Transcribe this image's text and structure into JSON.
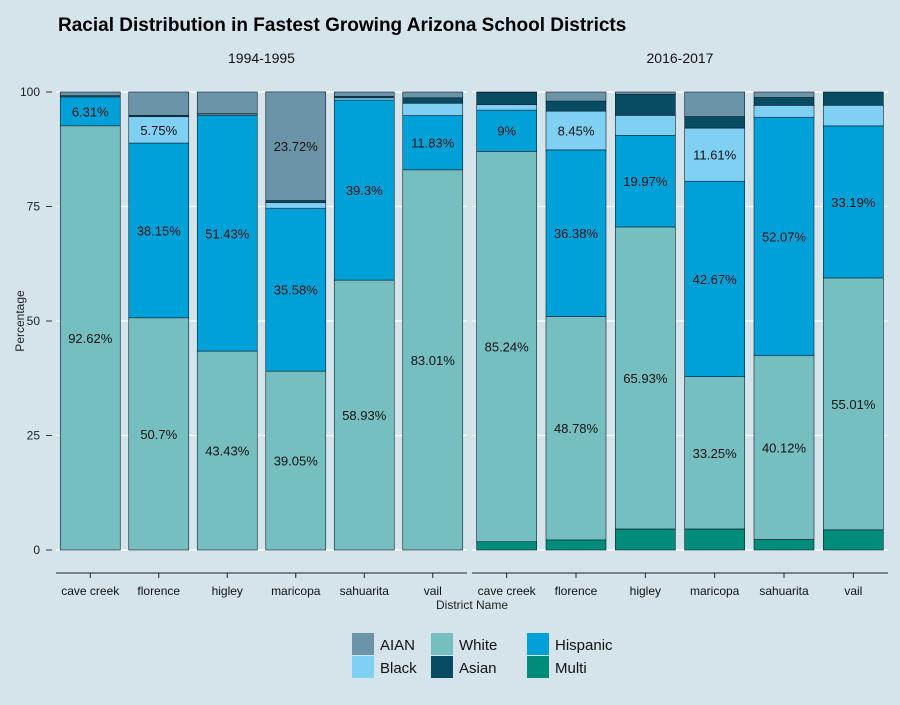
{
  "chart_data": {
    "type": "bar",
    "stacked": true,
    "title": "Racial Distribution in Fastest Growing Arizona School Districts",
    "xlabel": "District Name",
    "ylabel": "Percentage",
    "ylim": [
      0,
      100
    ],
    "yticks": [
      "0",
      "25",
      "50",
      "75",
      "100"
    ],
    "grid": true,
    "legend_position": "bottom",
    "categories": [
      "cave creek",
      "florence",
      "higley",
      "maricopa",
      "sahuarita",
      "vail"
    ],
    "stack_order": [
      "Multi",
      "White",
      "Hispanic",
      "Black",
      "Asian",
      "AIAN"
    ],
    "legend": [
      {
        "name": "AIAN",
        "color": "#6b94a8"
      },
      {
        "name": "Black",
        "color": "#7fd0f2"
      },
      {
        "name": "White",
        "color": "#76bfc0"
      },
      {
        "name": "Asian",
        "color": "#074c63"
      },
      {
        "name": "Hispanic",
        "color": "#00a0d8"
      },
      {
        "name": "Multi",
        "color": "#008c7a"
      }
    ],
    "facets": [
      {
        "label": "1994-1995",
        "series": [
          {
            "name": "Multi",
            "values": [
              0,
              0,
              0,
              0,
              0,
              0
            ]
          },
          {
            "name": "White",
            "values": [
              92.62,
              50.7,
              43.43,
              39.05,
              58.93,
              83.01
            ]
          },
          {
            "name": "Hispanic",
            "values": [
              6.31,
              38.15,
              51.43,
              35.58,
              39.3,
              11.83
            ]
          },
          {
            "name": "Black",
            "values": [
              0.2,
              5.75,
              0.3,
              1.2,
              0.5,
              2.7
            ]
          },
          {
            "name": "Asian",
            "values": [
              0.07,
              0.3,
              0.1,
              0.47,
              0.3,
              1.2
            ]
          },
          {
            "name": "AIAN",
            "values": [
              0.8,
              5.1,
              4.74,
              23.72,
              0.97,
              1.26
            ]
          }
        ],
        "labels": {
          "White": [
            "92.62%",
            "50.7%",
            "43.43%",
            "39.05%",
            "58.93%",
            "83.01%"
          ],
          "Hispanic": [
            "6.31%",
            "38.15%",
            "51.43%",
            "35.58%",
            "39.3%",
            "11.83%"
          ],
          "Black": [
            "",
            "5.75%",
            "",
            "",
            "",
            ""
          ],
          "AIAN": [
            "",
            "",
            "",
            "23.72%",
            "",
            ""
          ]
        }
      },
      {
        "label": "2016-2017",
        "series": [
          {
            "name": "Multi",
            "values": [
              1.8,
              2.2,
              4.6,
              4.6,
              2.3,
              4.4
            ]
          },
          {
            "name": "White",
            "values": [
              85.24,
              48.78,
              65.93,
              33.25,
              40.12,
              55.01
            ]
          },
          {
            "name": "Hispanic",
            "values": [
              9,
              36.38,
              19.97,
              42.67,
              52.07,
              33.19
            ]
          },
          {
            "name": "Black",
            "values": [
              1.2,
              8.45,
              4.4,
              11.61,
              2.6,
              4.5
            ]
          },
          {
            "name": "Asian",
            "values": [
              2.66,
              2.2,
              4.6,
              2.5,
              1.71,
              2.9
            ]
          },
          {
            "name": "AIAN",
            "values": [
              0.1,
              1.99,
              0.5,
              5.37,
              1.2,
              0
            ]
          }
        ],
        "labels": {
          "White": [
            "85.24%",
            "48.78%",
            "65.93%",
            "33.25%",
            "40.12%",
            "55.01%"
          ],
          "Hispanic": [
            "9%",
            "36.38%",
            "19.97%",
            "42.67%",
            "52.07%",
            "33.19%"
          ],
          "Black": [
            "",
            "8.45%",
            "",
            "11.61%",
            "",
            ""
          ]
        }
      }
    ]
  }
}
